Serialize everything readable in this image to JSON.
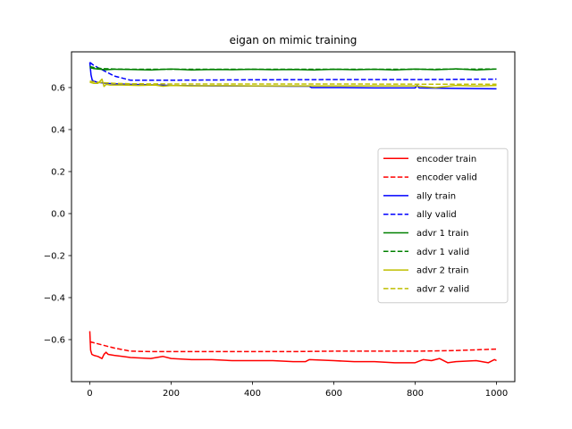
{
  "chart_data": {
    "type": "line",
    "title": "eigan on mimic training",
    "xlabel": "",
    "ylabel": "",
    "xlim": [
      -45,
      1045
    ],
    "ylim": [
      -0.8,
      0.77
    ],
    "xticks": [
      0,
      200,
      400,
      600,
      800,
      1000
    ],
    "xtick_labels": [
      "0",
      "200",
      "400",
      "600",
      "800",
      "1000"
    ],
    "yticks": [
      -0.6,
      -0.4,
      -0.2,
      0.0,
      0.2,
      0.4,
      0.6
    ],
    "ytick_labels": [
      "−0.6",
      "−0.4",
      "−0.2",
      "0.0",
      "0.2",
      "0.4",
      "0.6"
    ],
    "grid": false,
    "legend_position": "center-right",
    "series": [
      {
        "name": "encoder train",
        "color": "#ff0000",
        "style": "solid",
        "x": [
          0,
          2,
          5,
          10,
          20,
          30,
          35,
          40,
          45,
          60,
          80,
          100,
          150,
          180,
          200,
          250,
          300,
          350,
          400,
          450,
          500,
          530,
          540,
          600,
          650,
          700,
          750,
          800,
          820,
          840,
          860,
          880,
          900,
          950,
          980,
          995,
          1000
        ],
        "y": [
          -0.56,
          -0.65,
          -0.67,
          -0.675,
          -0.68,
          -0.69,
          -0.67,
          -0.66,
          -0.67,
          -0.675,
          -0.68,
          -0.685,
          -0.69,
          -0.68,
          -0.69,
          -0.695,
          -0.695,
          -0.7,
          -0.7,
          -0.7,
          -0.705,
          -0.705,
          -0.695,
          -0.7,
          -0.705,
          -0.705,
          -0.71,
          -0.71,
          -0.695,
          -0.7,
          -0.69,
          -0.71,
          -0.705,
          -0.7,
          -0.71,
          -0.695,
          -0.7
        ]
      },
      {
        "name": "encoder valid",
        "color": "#ff0000",
        "style": "dashed",
        "x": [
          0,
          10,
          30,
          60,
          100,
          150,
          200,
          300,
          400,
          500,
          600,
          700,
          800,
          900,
          1000
        ],
        "y": [
          -0.61,
          -0.615,
          -0.625,
          -0.64,
          -0.655,
          -0.657,
          -0.657,
          -0.657,
          -0.657,
          -0.657,
          -0.655,
          -0.655,
          -0.655,
          -0.652,
          -0.645
        ]
      },
      {
        "name": "ally train",
        "color": "#0000ff",
        "style": "solid",
        "x": [
          0,
          3,
          6,
          10,
          20,
          40,
          60,
          100,
          150,
          200,
          300,
          400,
          500,
          540,
          545,
          600,
          700,
          800,
          805,
          810,
          900,
          1000
        ],
        "y": [
          0.72,
          0.66,
          0.635,
          0.63,
          0.625,
          0.62,
          0.618,
          0.615,
          0.613,
          0.61,
          0.608,
          0.607,
          0.606,
          0.606,
          0.6,
          0.6,
          0.598,
          0.598,
          0.61,
          0.598,
          0.596,
          0.594
        ]
      },
      {
        "name": "ally valid",
        "color": "#0000ff",
        "style": "dashed",
        "x": [
          0,
          10,
          30,
          60,
          100,
          150,
          200,
          400,
          600,
          800,
          1000
        ],
        "y": [
          0.72,
          0.705,
          0.685,
          0.655,
          0.635,
          0.635,
          0.635,
          0.637,
          0.638,
          0.638,
          0.64
        ]
      },
      {
        "name": "advr 1 train",
        "color": "#008000",
        "style": "solid",
        "x": [
          0,
          10,
          20,
          40,
          60,
          100,
          150,
          200,
          250,
          300,
          350,
          400,
          450,
          500,
          550,
          600,
          650,
          700,
          750,
          800,
          850,
          900,
          950,
          1000
        ],
        "y": [
          0.695,
          0.69,
          0.688,
          0.685,
          0.687,
          0.686,
          0.684,
          0.688,
          0.684,
          0.686,
          0.685,
          0.687,
          0.685,
          0.686,
          0.684,
          0.687,
          0.685,
          0.687,
          0.684,
          0.688,
          0.685,
          0.689,
          0.684,
          0.688
        ]
      },
      {
        "name": "advr 1 valid",
        "color": "#008000",
        "style": "dashed",
        "x": [
          0,
          10,
          30,
          60,
          100,
          200,
          400,
          600,
          800,
          1000
        ],
        "y": [
          0.7,
          0.695,
          0.69,
          0.688,
          0.687,
          0.687,
          0.687,
          0.687,
          0.687,
          0.688
        ]
      },
      {
        "name": "advr 2 train",
        "color": "#bfbf00",
        "style": "solid",
        "x": [
          0,
          10,
          20,
          30,
          35,
          40,
          50,
          80,
          120,
          160,
          180,
          200,
          250,
          300,
          400,
          500,
          600,
          700,
          800,
          850,
          900,
          950,
          1000
        ],
        "y": [
          0.625,
          0.62,
          0.62,
          0.64,
          0.605,
          0.615,
          0.612,
          0.612,
          0.61,
          0.612,
          0.606,
          0.61,
          0.608,
          0.609,
          0.608,
          0.608,
          0.608,
          0.608,
          0.608,
          0.6,
          0.61,
          0.607,
          0.61
        ]
      },
      {
        "name": "advr 2 valid",
        "color": "#bfbf00",
        "style": "dashed",
        "x": [
          0,
          20,
          60,
          100,
          200,
          400,
          600,
          800,
          1000
        ],
        "y": [
          0.63,
          0.625,
          0.62,
          0.618,
          0.617,
          0.617,
          0.617,
          0.616,
          0.616
        ]
      }
    ]
  }
}
